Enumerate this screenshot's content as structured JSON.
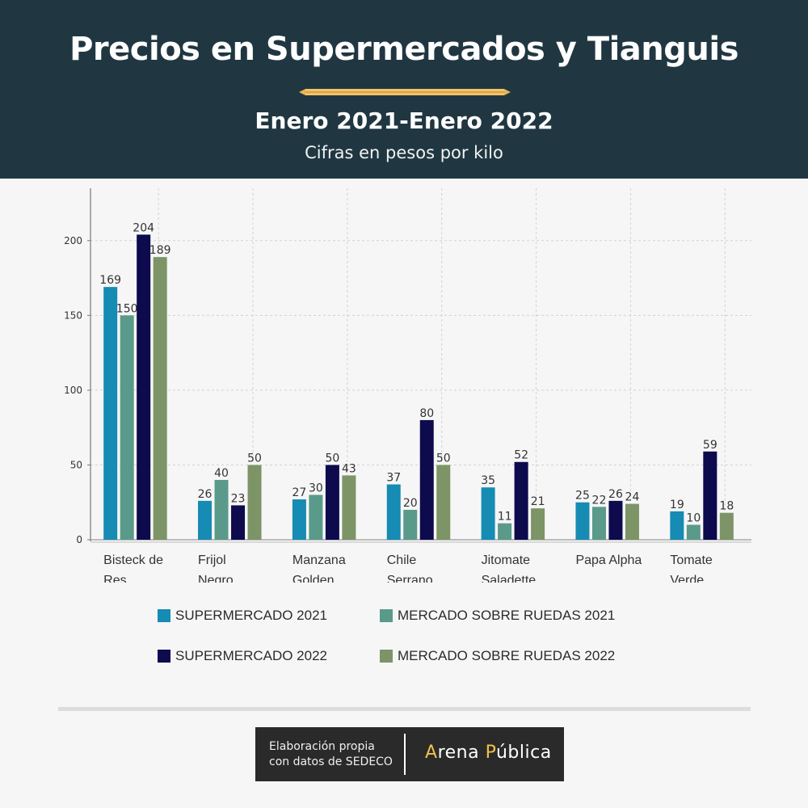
{
  "header": {
    "title": "Precios en Supermercados y Tianguis",
    "subtitle": "Enero 2021-Enero 2022",
    "units": "Cifras en pesos por kilo"
  },
  "chart_data": {
    "type": "bar",
    "categories": [
      [
        "Bisteck de",
        "Res"
      ],
      [
        "Frijol",
        "Negro"
      ],
      [
        "Manzana",
        "Golden"
      ],
      [
        "Chile",
        "Serrano"
      ],
      [
        "Jitomate",
        "Saladette"
      ],
      [
        "Papa Alpha"
      ],
      [
        "Tomate",
        "Verde"
      ]
    ],
    "series": [
      {
        "name": "SUPERMERCADO 2021",
        "color": "#168bb3",
        "values": [
          169,
          26,
          27,
          37,
          35,
          25,
          19
        ]
      },
      {
        "name": "MERCADO SOBRE RUEDAS 2021",
        "color": "#5a9a8a",
        "values": [
          150,
          40,
          30,
          20,
          11,
          22,
          10
        ]
      },
      {
        "name": "SUPERMERCADO 2022",
        "color": "#0d0a4d",
        "values": [
          204,
          23,
          50,
          80,
          52,
          26,
          59
        ]
      },
      {
        "name": "MERCADO SOBRE RUEDAS 2022",
        "color": "#7d9467",
        "values": [
          189,
          50,
          43,
          50,
          21,
          24,
          18
        ]
      }
    ],
    "yticks": [
      0,
      50,
      100,
      150,
      200
    ],
    "ylim": [
      0,
      235
    ],
    "grid": true,
    "legend": "bottom"
  },
  "footer": {
    "credit_line1": "Elaboración propia",
    "credit_line2": "con datos de SEDECO",
    "brand_a": "A",
    "brand_rena": "rena ",
    "brand_p": "P",
    "brand_ublica": "ública"
  }
}
